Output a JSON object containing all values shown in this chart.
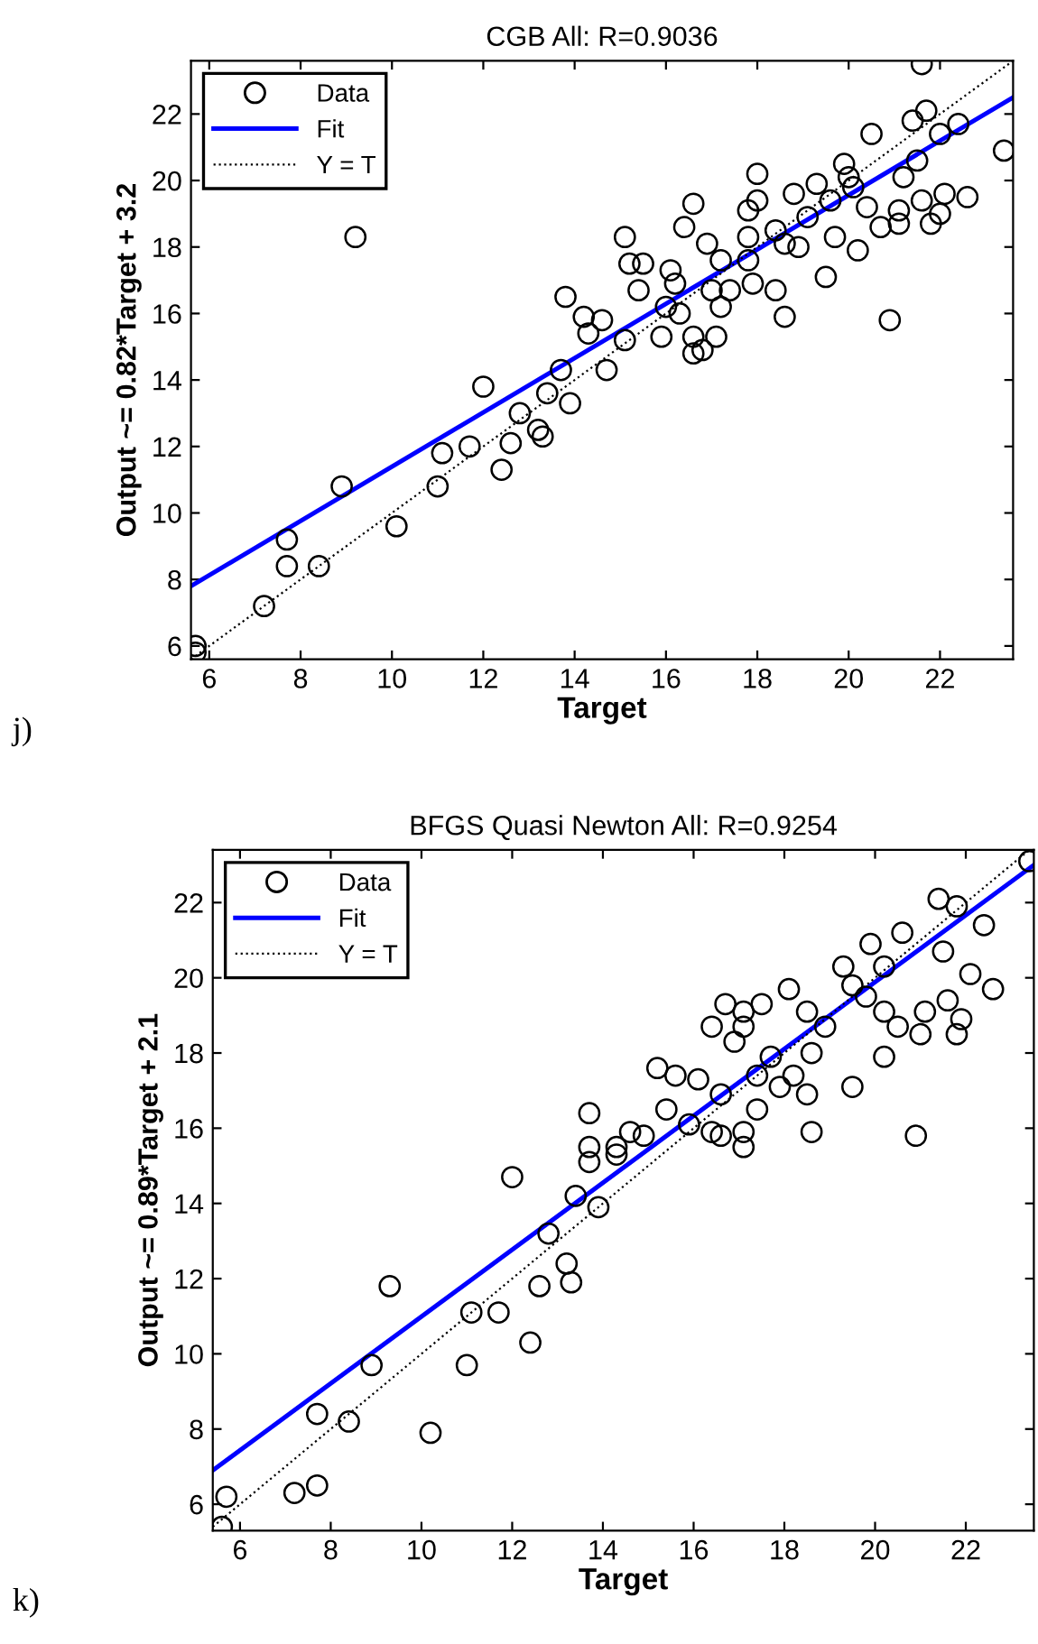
{
  "chart_data": [
    {
      "type": "scatter",
      "title": "CGB All: R=0.9036",
      "xlabel": "Target",
      "ylabel": "Output ~= 0.82*Target + 3.2",
      "annotations": [
        "j)"
      ],
      "xlim": [
        5.6,
        23.6
      ],
      "ylim": [
        5.6,
        23.6
      ],
      "xticks": [
        6,
        8,
        10,
        12,
        14,
        16,
        18,
        20,
        22
      ],
      "yticks": [
        6,
        8,
        10,
        12,
        14,
        16,
        18,
        20,
        22
      ],
      "grid": false,
      "legend": "top left",
      "series": [
        {
          "name": "Data",
          "marker": "circle",
          "color": "#000000",
          "x": [
            21.6,
            23.4,
            9.2,
            20.5,
            22.4,
            21.7,
            21.4,
            22.0,
            21.5,
            21.6,
            22.1,
            22.6,
            22.0,
            21.8,
            20.9,
            21.1,
            21.1,
            20.2,
            19.5,
            18.6,
            19.9,
            18.0,
            16.6,
            16.4,
            15.1,
            15.2,
            15.5,
            16.1,
            16.2,
            15.4,
            13.8,
            14.2,
            14.3,
            14.6,
            15.1,
            15.9,
            16.6,
            16.6,
            16.8,
            17.1,
            17.2,
            17.0,
            17.4,
            17.9,
            18.4,
            18.9,
            16.9,
            17.2,
            17.8,
            18.4,
            19.1,
            19.6,
            20.1,
            20.0,
            18.0,
            18.8,
            19.3,
            17.8,
            18.6,
            20.4,
            20.7,
            21.2,
            19.7,
            14.7,
            13.7,
            13.9,
            13.4,
            12.0,
            12.8,
            13.2,
            13.3,
            12.6,
            11.7,
            11.1,
            12.4,
            11.0,
            8.9,
            10.1,
            7.7,
            7.7,
            8.4,
            7.2,
            5.7,
            5.7,
            16.0,
            16.3,
            17.8
          ],
          "values": [
            23.5,
            20.9,
            18.3,
            21.4,
            21.7,
            22.1,
            21.8,
            21.4,
            20.6,
            19.4,
            19.6,
            19.5,
            19.0,
            18.7,
            15.8,
            18.7,
            19.1,
            17.9,
            17.1,
            15.9,
            20.5,
            20.2,
            19.3,
            18.6,
            18.3,
            17.5,
            17.5,
            17.3,
            16.9,
            16.7,
            16.5,
            15.9,
            15.4,
            15.8,
            15.2,
            15.3,
            15.3,
            14.8,
            14.9,
            15.3,
            16.2,
            16.7,
            16.7,
            16.9,
            16.7,
            18.0,
            18.1,
            17.6,
            18.3,
            18.5,
            18.9,
            19.4,
            19.8,
            20.1,
            19.4,
            19.6,
            19.9,
            19.1,
            18.1,
            19.2,
            18.6,
            20.1,
            18.3,
            14.3,
            14.3,
            13.3,
            13.6,
            13.8,
            13.0,
            12.5,
            12.3,
            12.1,
            12.0,
            11.8,
            11.3,
            10.8,
            10.8,
            9.6,
            9.2,
            8.4,
            8.4,
            7.2,
            6.0,
            5.8,
            16.2,
            16.0,
            17.6
          ]
        },
        {
          "name": "Fit",
          "type": "line",
          "color": "#0000ff",
          "line_style": "solid",
          "x": [
            5.6,
            23.6
          ],
          "values": [
            7.8,
            22.5
          ]
        },
        {
          "name": "Y = T",
          "type": "line",
          "color": "#000000",
          "line_style": "dotted",
          "x": [
            5.6,
            23.6
          ],
          "values": [
            5.6,
            23.6
          ]
        }
      ]
    },
    {
      "type": "scatter",
      "title": "BFGS Quasi Newton All: R=0.9254",
      "xlabel": "Target",
      "ylabel": "Output ~= 0.89*Target + 2.1",
      "annotations": [
        "k)"
      ],
      "xlim": [
        5.4,
        23.5
      ],
      "ylim": [
        5.3,
        23.4
      ],
      "xticks": [
        6,
        8,
        10,
        12,
        14,
        16,
        18,
        20,
        22
      ],
      "yticks": [
        6,
        8,
        10,
        12,
        14,
        16,
        18,
        20,
        22
      ],
      "grid": false,
      "legend": "top left",
      "series": [
        {
          "name": "Data",
          "marker": "circle",
          "color": "#000000",
          "x": [
            23.4,
            21.4,
            21.8,
            22.4,
            21.5,
            20.6,
            19.9,
            22.1,
            22.6,
            21.6,
            21.9,
            21.8,
            21.1,
            20.2,
            21.0,
            19.5,
            20.9,
            18.6,
            18.5,
            17.1,
            16.6,
            16.1,
            15.6,
            15.2,
            15.4,
            15.9,
            16.6,
            16.4,
            17.1,
            17.4,
            16.7,
            16.4,
            16.9,
            17.1,
            17.5,
            18.1,
            17.7,
            17.9,
            18.2,
            18.9,
            19.3,
            19.8,
            20.2,
            20.5,
            18.6,
            17.4,
            17.1,
            18.5,
            19.5,
            20.2,
            13.7,
            13.7,
            13.7,
            14.3,
            14.3,
            14.6,
            14.9,
            12.0,
            13.4,
            13.9,
            12.8,
            13.2,
            13.3,
            12.6,
            9.3,
            11.1,
            11.7,
            12.4,
            11.0,
            8.9,
            7.7,
            8.4,
            10.2,
            7.7,
            7.2,
            5.7,
            5.6
          ],
          "values": [
            23.1,
            22.1,
            21.9,
            21.4,
            20.7,
            21.2,
            20.9,
            20.1,
            19.7,
            19.4,
            18.9,
            18.5,
            19.1,
            17.9,
            18.5,
            17.1,
            15.8,
            15.9,
            16.9,
            15.5,
            16.9,
            17.3,
            17.4,
            17.6,
            16.5,
            16.1,
            15.8,
            15.9,
            15.9,
            16.5,
            19.3,
            18.7,
            18.3,
            19.1,
            19.3,
            19.7,
            17.9,
            17.1,
            17.4,
            18.7,
            20.3,
            19.5,
            19.1,
            18.7,
            18.0,
            17.4,
            18.7,
            19.1,
            19.8,
            20.3,
            16.4,
            15.5,
            15.1,
            15.5,
            15.3,
            15.9,
            15.8,
            14.7,
            14.2,
            13.9,
            13.2,
            12.4,
            11.9,
            11.8,
            11.8,
            11.1,
            11.1,
            10.3,
            9.7,
            9.7,
            8.4,
            8.2,
            7.9,
            6.5,
            6.3,
            6.2,
            5.4
          ]
        },
        {
          "name": "Fit",
          "type": "line",
          "color": "#0000ff",
          "line_style": "solid",
          "x": [
            5.4,
            23.5
          ],
          "values": [
            6.9,
            23.0
          ]
        },
        {
          "name": "Y = T",
          "type": "line",
          "color": "#000000",
          "line_style": "dotted",
          "x": [
            5.4,
            23.4
          ],
          "values": [
            5.4,
            23.4
          ]
        }
      ]
    }
  ]
}
